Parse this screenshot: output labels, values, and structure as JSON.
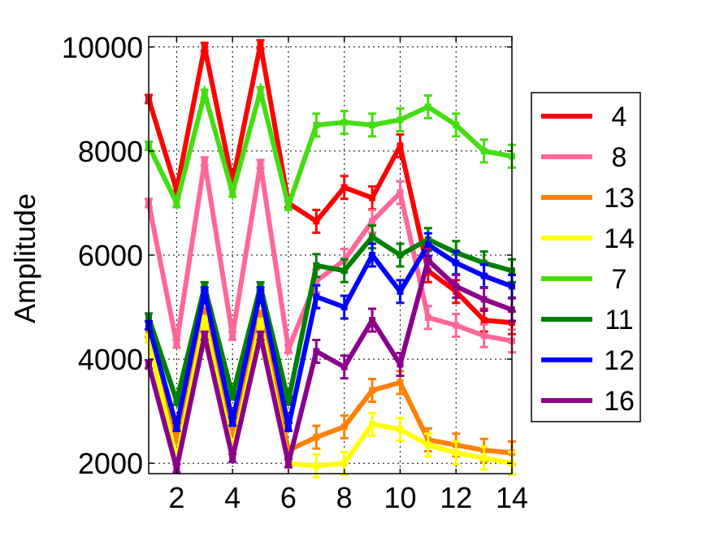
{
  "chart_data": {
    "type": "line",
    "title": "",
    "xlabel": "",
    "ylabel": "Amplitude",
    "xlim": [
      1,
      14
    ],
    "ylim": [
      1800,
      10200
    ],
    "x_ticks": [
      2,
      4,
      6,
      8,
      10,
      12,
      14
    ],
    "y_ticks": [
      2000,
      4000,
      6000,
      8000,
      10000
    ],
    "grid": true,
    "legend_position": "right",
    "x": [
      1,
      2,
      3,
      4,
      5,
      6,
      7,
      8,
      9,
      10,
      11,
      12,
      13,
      14
    ],
    "series": [
      {
        "name": "4",
        "color": "#ff0000",
        "values": [
          9000,
          7250,
          10000,
          7400,
          10050,
          7000,
          6650,
          7300,
          7100,
          8100,
          5700,
          5300,
          4750,
          4700
        ]
      },
      {
        "name": "8",
        "color": "#ff6699",
        "values": [
          7000,
          4300,
          7800,
          4450,
          7750,
          4200,
          5500,
          5900,
          6650,
          7200,
          4800,
          4650,
          4450,
          4350
        ]
      },
      {
        "name": "13",
        "color": "#ff8000",
        "values": [
          4500,
          2450,
          4900,
          2600,
          4850,
          2250,
          2500,
          2700,
          3400,
          3550,
          2450,
          2350,
          2250,
          2200
        ]
      },
      {
        "name": "14",
        "color": "#ffff00",
        "values": [
          4400,
          2050,
          4750,
          2200,
          4700,
          2000,
          1950,
          2000,
          2750,
          2650,
          2350,
          2200,
          2100,
          2000
        ]
      },
      {
        "name": "7",
        "color": "#44dd11",
        "values": [
          8100,
          7000,
          9100,
          7200,
          9150,
          6950,
          8500,
          8550,
          8500,
          8600,
          8850,
          8500,
          8000,
          7900
        ]
      },
      {
        "name": "11",
        "color": "#008000",
        "values": [
          4800,
          3200,
          5400,
          3300,
          5400,
          3200,
          5800,
          5700,
          6350,
          6000,
          6300,
          6050,
          5850,
          5700
        ]
      },
      {
        "name": "12",
        "color": "#0000ff",
        "values": [
          4650,
          2700,
          5300,
          2800,
          5300,
          2700,
          5200,
          5000,
          6000,
          5300,
          6200,
          5850,
          5600,
          5400
        ]
      },
      {
        "name": "16",
        "color": "#8b008b",
        "values": [
          3900,
          1900,
          4450,
          2100,
          4450,
          2000,
          4150,
          3850,
          4750,
          3900,
          5900,
          5400,
          5150,
          4950
        ]
      }
    ]
  }
}
